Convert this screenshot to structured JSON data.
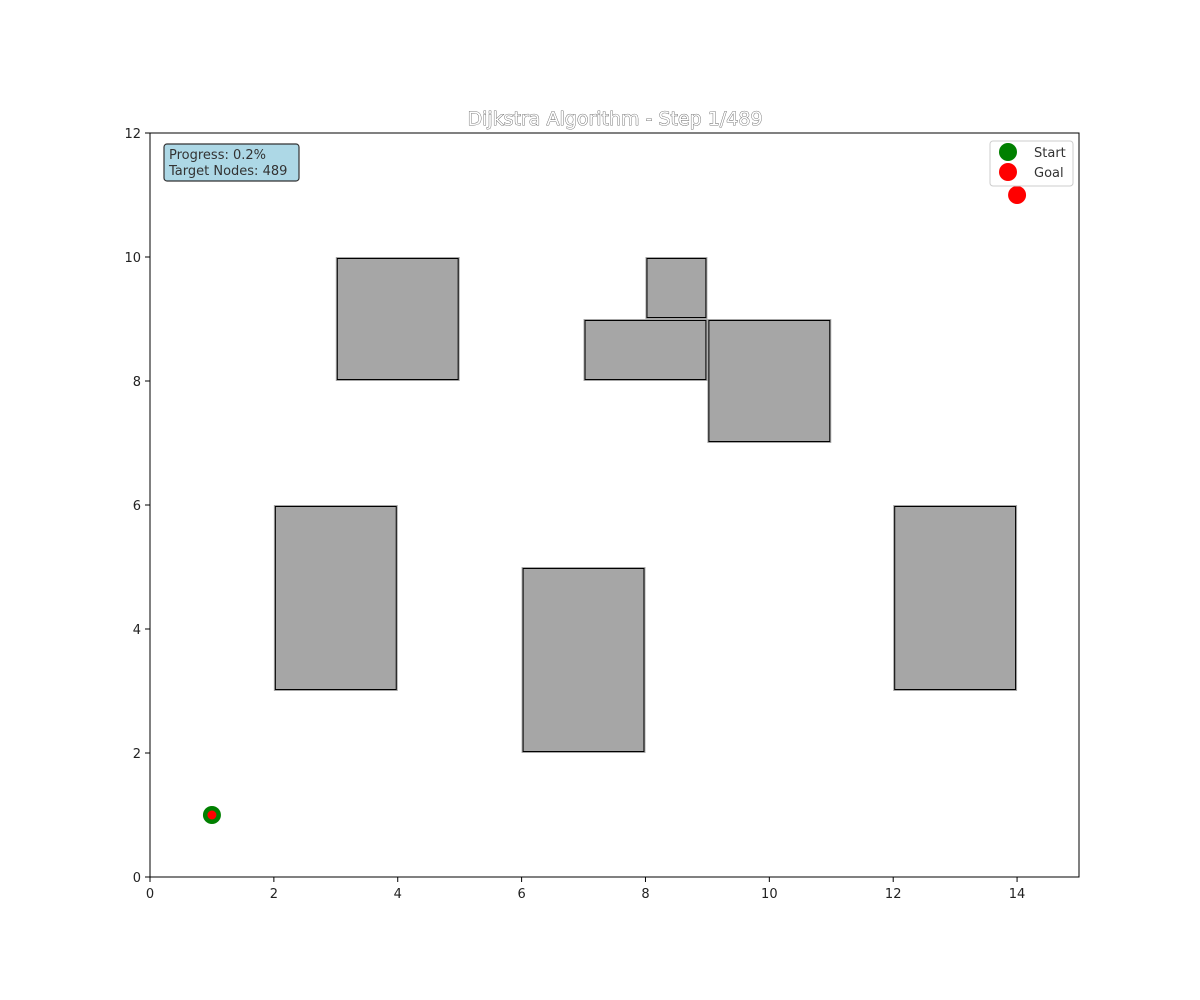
{
  "chart_data": {
    "type": "scatter",
    "title": "Dijkstra Algorithm - Step 1/489",
    "xlabel": "",
    "ylabel": "",
    "xlim": [
      0,
      15
    ],
    "ylim": [
      0,
      12
    ],
    "xticks": [
      0,
      2,
      4,
      6,
      8,
      10,
      12,
      14
    ],
    "yticks": [
      0,
      2,
      4,
      6,
      8,
      10,
      12
    ],
    "grid": false,
    "obstacles": [
      {
        "x": 3,
        "y": 8,
        "w": 2,
        "h": 2
      },
      {
        "x": 7,
        "y": 8,
        "w": 2,
        "h": 1
      },
      {
        "x": 8,
        "y": 9,
        "w": 1,
        "h": 1
      },
      {
        "x": 9,
        "y": 7,
        "w": 2,
        "h": 2
      },
      {
        "x": 2,
        "y": 3,
        "w": 2,
        "h": 3
      },
      {
        "x": 6,
        "y": 2,
        "w": 2,
        "h": 3
      },
      {
        "x": 12,
        "y": 3,
        "w": 2,
        "h": 3
      }
    ],
    "obstacle_color": "#a6a6a6",
    "series": [
      {
        "name": "Start",
        "color": "#008000",
        "points": [
          [
            1,
            1
          ]
        ]
      },
      {
        "name": "Goal",
        "color": "#ff0000",
        "points": [
          [
            14,
            11
          ]
        ]
      }
    ],
    "visited": [
      [
        1,
        1
      ]
    ],
    "visited_color": "#ff0000",
    "legend_position": "top-right"
  },
  "info_box": {
    "line1": "Progress: 0.2%",
    "line2": "Target Nodes: 489",
    "background": "#add8e6"
  }
}
